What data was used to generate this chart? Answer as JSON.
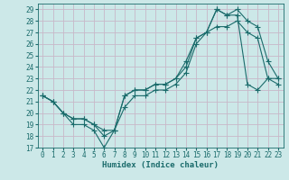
{
  "xlabel": "Humidex (Indice chaleur)",
  "background_color": "#cce8e8",
  "grid_color": "#c8b8c8",
  "line_color": "#1a6b6b",
  "xlim": [
    -0.5,
    23.5
  ],
  "ylim": [
    17,
    29.5
  ],
  "yticks": [
    17,
    18,
    19,
    20,
    21,
    22,
    23,
    24,
    25,
    26,
    27,
    28,
    29
  ],
  "xticks": [
    0,
    1,
    2,
    3,
    4,
    5,
    6,
    7,
    8,
    9,
    10,
    11,
    12,
    13,
    14,
    15,
    16,
    17,
    18,
    19,
    20,
    21,
    22,
    23
  ],
  "series1_x": [
    0,
    1,
    2,
    3,
    4,
    5,
    6,
    7,
    8,
    9,
    10,
    11,
    12,
    13,
    14,
    15,
    16,
    17,
    18,
    19,
    20,
    21,
    22,
    23
  ],
  "series1_y": [
    21.5,
    21.0,
    20.0,
    19.0,
    19.0,
    18.5,
    17.0,
    18.5,
    21.5,
    22.0,
    22.0,
    22.5,
    22.5,
    23.0,
    24.5,
    26.5,
    27.0,
    29.0,
    28.5,
    28.5,
    22.5,
    22.0,
    23.0,
    23.0
  ],
  "series2_x": [
    0,
    1,
    2,
    3,
    4,
    5,
    6,
    7,
    8,
    9,
    10,
    11,
    12,
    13,
    14,
    15,
    16,
    17,
    18,
    19,
    20,
    21,
    22,
    23
  ],
  "series2_y": [
    21.5,
    21.0,
    20.0,
    19.5,
    19.5,
    19.0,
    18.0,
    18.5,
    21.5,
    22.0,
    22.0,
    22.5,
    22.5,
    23.0,
    24.0,
    26.5,
    27.0,
    29.0,
    28.5,
    29.0,
    28.0,
    27.5,
    24.5,
    23.0
  ],
  "series3_x": [
    0,
    1,
    2,
    3,
    4,
    5,
    6,
    7,
    8,
    9,
    10,
    11,
    12,
    13,
    14,
    15,
    16,
    17,
    18,
    19,
    20,
    21,
    22,
    23
  ],
  "series3_y": [
    21.5,
    21.0,
    20.0,
    19.5,
    19.5,
    19.0,
    18.5,
    18.5,
    20.5,
    21.5,
    21.5,
    22.0,
    22.0,
    22.5,
    23.5,
    26.0,
    27.0,
    27.5,
    27.5,
    28.0,
    27.0,
    26.5,
    23.0,
    22.5
  ],
  "tick_fontsize": 5.5,
  "xlabel_fontsize": 6.5
}
